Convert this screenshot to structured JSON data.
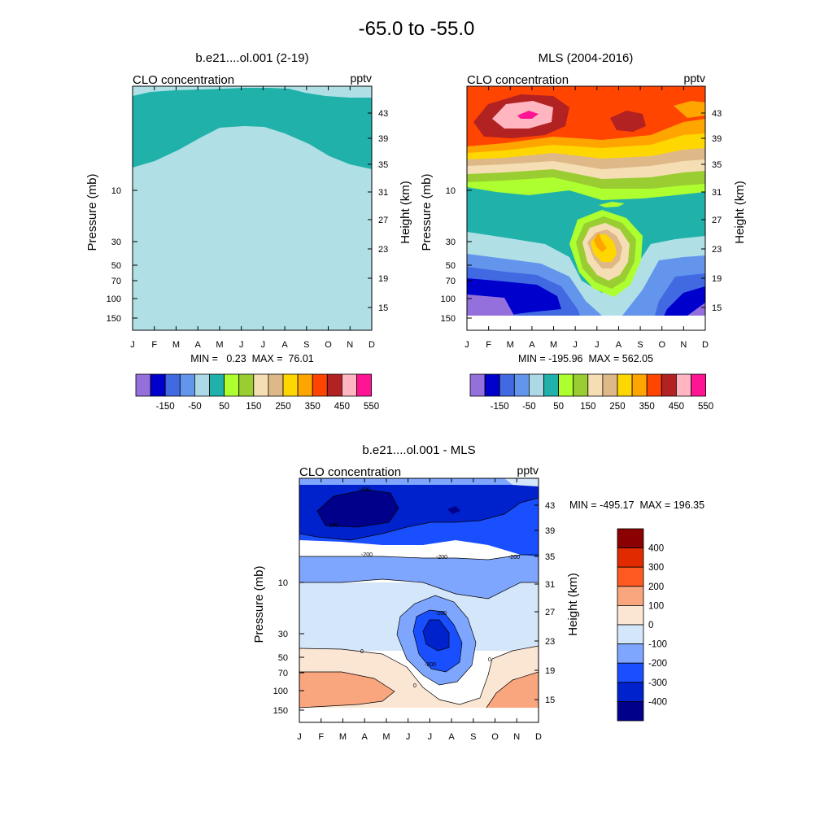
{
  "figure_title": "-65.0 to -55.0",
  "colors": {
    "main_palette": [
      "#9370DB",
      "#0000CD",
      "#4169E1",
      "#6495ED",
      "#ADD8E6",
      "#20B2AA",
      "#ADFF2F",
      "#9ACD32",
      "#F5DEB3",
      "#DEB887",
      "#FFD700",
      "#FFA500",
      "#FF4500",
      "#B22222",
      "#FFB6C1",
      "#FF1493"
    ],
    "diff_palette": [
      "#00008B",
      "#0022CC",
      "#1A4FFF",
      "#7FA6FF",
      "#D4E6FA",
      "#FBE6D4",
      "#F9A67F",
      "#FF5A22",
      "#E02A00",
      "#8B0000"
    ]
  },
  "chart_data": [
    {
      "type": "contour",
      "title": "b.e21....ol.001 (2-19)",
      "left_label": "CLO concentration",
      "right_label": "pptv",
      "ylabel": "Pressure (mb)",
      "ylabel_right": "Height (km)",
      "x_ticks": [
        "J",
        "F",
        "M",
        "A",
        "M",
        "J",
        "J",
        "A",
        "S",
        "O",
        "N",
        "D"
      ],
      "pressure_ticks": [
        "10",
        "30",
        "50",
        "70",
        "100",
        "150"
      ],
      "height_ticks": [
        "43",
        "39",
        "35",
        "31",
        "27",
        "23",
        "19",
        "15"
      ],
      "stats": "MIN =   0.23  MAX =  76.01",
      "min": 0.23,
      "max": 76.01,
      "colorbar_labels": [
        "-150",
        "-50",
        "50",
        "150",
        "250",
        "350",
        "450",
        "550"
      ]
    },
    {
      "type": "contour",
      "title": "MLS (2004-2016)",
      "left_label": "CLO concentration",
      "right_label": "pptv",
      "ylabel": "Pressure (mb)",
      "ylabel_right": "Height (km)",
      "x_ticks": [
        "J",
        "F",
        "M",
        "A",
        "M",
        "J",
        "J",
        "A",
        "S",
        "O",
        "N",
        "D"
      ],
      "pressure_ticks": [
        "10",
        "30",
        "50",
        "70",
        "100",
        "150"
      ],
      "height_ticks": [
        "43",
        "39",
        "35",
        "31",
        "27",
        "23",
        "19",
        "15"
      ],
      "stats": "MIN = -195.96  MAX = 562.05",
      "min": -195.96,
      "max": 562.05,
      "colorbar_labels": [
        "-150",
        "-50",
        "50",
        "150",
        "250",
        "350",
        "450",
        "550"
      ]
    },
    {
      "type": "contour",
      "title": "b.e21....ol.001 - MLS",
      "left_label": "CLO concentration",
      "right_label": "pptv",
      "ylabel": "Pressure (mb)",
      "ylabel_right": "Height (km)",
      "x_ticks": [
        "J",
        "F",
        "M",
        "A",
        "M",
        "J",
        "J",
        "A",
        "S",
        "O",
        "N",
        "D"
      ],
      "pressure_ticks": [
        "10",
        "30",
        "50",
        "70",
        "100",
        "150"
      ],
      "height_ticks": [
        "43",
        "39",
        "35",
        "31",
        "27",
        "23",
        "19",
        "15"
      ],
      "stats": "MIN = -495.17  MAX = 196.35",
      "min": -495.17,
      "max": 196.35,
      "colorbar_labels": [
        "400",
        "300",
        "200",
        "100",
        "0",
        "-100",
        "-200",
        "-300",
        "-400"
      ],
      "contour_labels": [
        "-400",
        "-100",
        "-200",
        "-200",
        "-200",
        "-200",
        "-200",
        "0",
        "0",
        "0"
      ]
    }
  ]
}
